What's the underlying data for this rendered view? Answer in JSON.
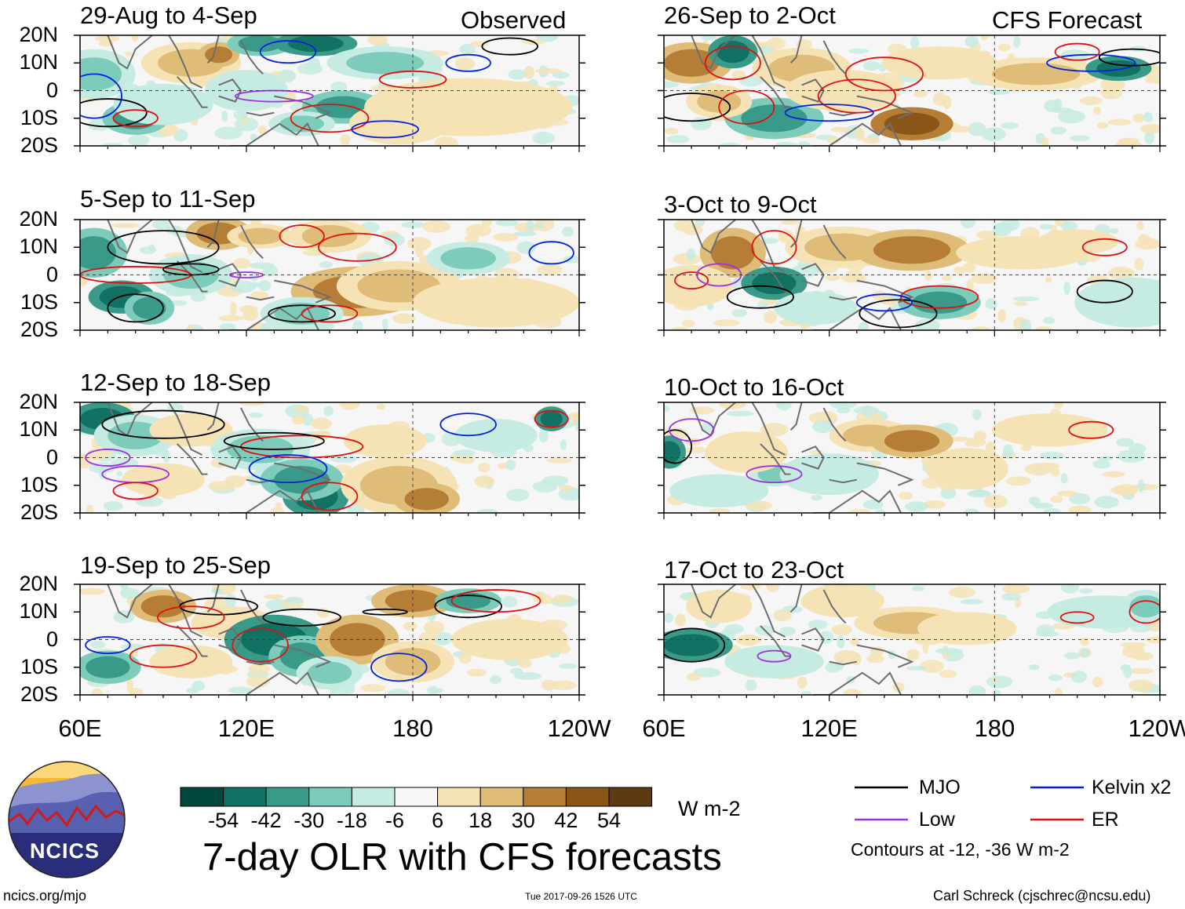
{
  "title": "7-day OLR with CFS forecasts",
  "column_headers": {
    "observed": "Observed",
    "forecast": "CFS Forecast"
  },
  "panels": [
    {
      "period": "29-Aug to 4-Sep",
      "kind": "observed"
    },
    {
      "period": "5-Sep to 11-Sep",
      "kind": "observed"
    },
    {
      "period": "12-Sep to 18-Sep",
      "kind": "observed"
    },
    {
      "period": "19-Sep to 25-Sep",
      "kind": "observed"
    },
    {
      "period": "26-Sep to 2-Oct",
      "kind": "forecast"
    },
    {
      "period": "3-Oct to 9-Oct",
      "kind": "forecast"
    },
    {
      "period": "10-Oct to 16-Oct",
      "kind": "forecast"
    },
    {
      "period": "17-Oct to 23-Oct",
      "kind": "forecast"
    }
  ],
  "chart_data": {
    "type": "heatmap",
    "title": "7-day OLR with CFS forecasts",
    "variable": "OLR anomaly",
    "units": "W m-2",
    "x_ticks": [
      "60E",
      "120E",
      "180",
      "120W"
    ],
    "x_range_deg_east": [
      60,
      240
    ],
    "y_ticks": [
      "20N",
      "10N",
      "0",
      "10S",
      "20S"
    ],
    "y_range_deg_north": [
      -20,
      20
    ],
    "colorbar": {
      "ticks": [
        "-54",
        "-42",
        "-30",
        "-18",
        "-6",
        "6",
        "18",
        "30",
        "42",
        "54"
      ],
      "colors": [
        "#00473d",
        "#117263",
        "#3a9a8a",
        "#7ccbbb",
        "#c5ebe2",
        "#f6f6f6",
        "#f5e3b6",
        "#dfbd78",
        "#b57d35",
        "#8a5618",
        "#5e3a12"
      ]
    },
    "contour_legend": [
      {
        "label": "MJO",
        "color": "#000000"
      },
      {
        "label": "Kelvin x2",
        "color": "#0022dd"
      },
      {
        "label": "Low",
        "color": "#a030e0"
      },
      {
        "label": "ER",
        "color": "#e01010"
      }
    ],
    "contour_note": "Contours at -12, -36 W m-2"
  },
  "footer": {
    "url": "ncics.org/mjo",
    "timestamp": "Tue 2017-09-26 1526 UTC",
    "author": "Carl Schreck (cjschrec@ncsu.edu)",
    "logo_text": "NCICS"
  }
}
